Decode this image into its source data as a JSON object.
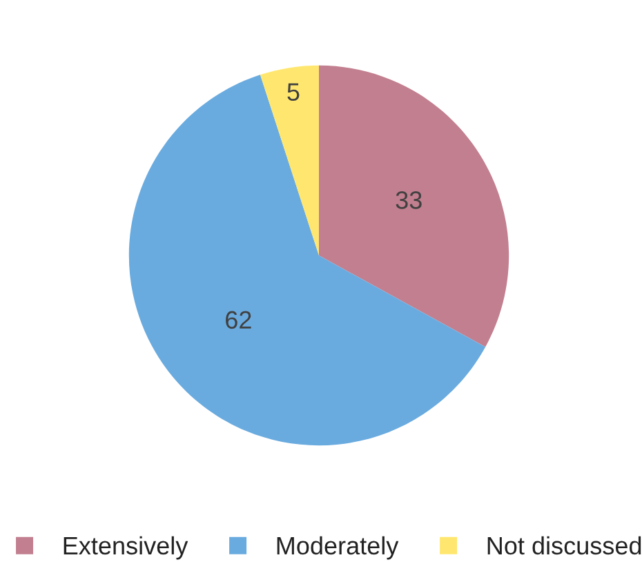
{
  "chart_data": {
    "type": "pie",
    "categories": [
      "Extensively",
      "Moderately",
      "Not discussed"
    ],
    "values": [
      33,
      62,
      5
    ],
    "colors": [
      "#c27f8f",
      "#6aabdf",
      "#ffe76f"
    ],
    "data_labels": true,
    "legend": "bottom"
  }
}
